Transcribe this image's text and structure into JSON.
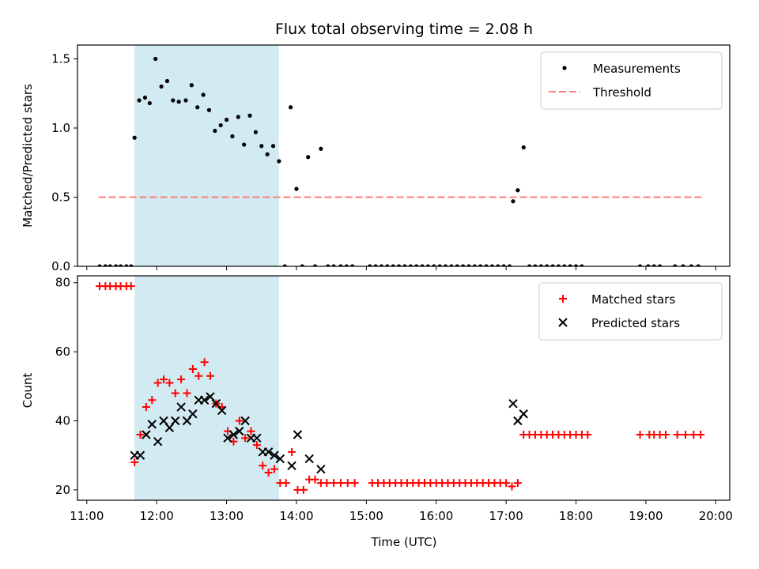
{
  "chart_data": {
    "title": "Flux total observing time = 2.08 h",
    "shaded_interval": {
      "start": "11:41",
      "end": "13:45",
      "color": "#add8e6"
    },
    "top": {
      "type": "scatter",
      "ylabel": "Matched/Predicted stars",
      "ylim": [
        0,
        1.6
      ],
      "yticks": [
        "0.0",
        "0.5",
        "1.0",
        "1.5"
      ],
      "ytick_values": [
        0,
        0.5,
        1.0,
        1.5
      ],
      "legend_position": "upper right",
      "legend": [
        "Measurements",
        "Threshold"
      ],
      "threshold": {
        "value": 0.5,
        "from": "11:10",
        "to": "19:48",
        "color": "#ff7f7f"
      },
      "series": [
        {
          "name": "Measurements",
          "marker": "dot",
          "color": "#000000",
          "points": [
            [
              "11:11",
              0
            ],
            [
              "11:16",
              0
            ],
            [
              "11:20",
              0
            ],
            [
              "11:25",
              0
            ],
            [
              "11:29",
              0
            ],
            [
              "11:34",
              0
            ],
            [
              "11:38",
              0
            ],
            [
              "11:41",
              0.93
            ],
            [
              "11:45",
              1.2
            ],
            [
              "11:50",
              1.22
            ],
            [
              "11:54",
              1.18
            ],
            [
              "11:59",
              1.5
            ],
            [
              "12:04",
              1.3
            ],
            [
              "12:09",
              1.34
            ],
            [
              "12:14",
              1.2
            ],
            [
              "12:19",
              1.19
            ],
            [
              "12:25",
              1.2
            ],
            [
              "12:30",
              1.31
            ],
            [
              "12:35",
              1.15
            ],
            [
              "12:40",
              1.24
            ],
            [
              "12:45",
              1.13
            ],
            [
              "12:50",
              0.98
            ],
            [
              "12:55",
              1.02
            ],
            [
              "13:00",
              1.06
            ],
            [
              "13:05",
              0.94
            ],
            [
              "13:10",
              1.08
            ],
            [
              "13:15",
              0.88
            ],
            [
              "13:20",
              1.09
            ],
            [
              "13:25",
              0.97
            ],
            [
              "13:30",
              0.87
            ],
            [
              "13:35",
              0.81
            ],
            [
              "13:40",
              0.87
            ],
            [
              "13:45",
              0.76
            ],
            [
              "13:50",
              0
            ],
            [
              "13:55",
              1.15
            ],
            [
              "14:00",
              0.56
            ],
            [
              "14:05",
              0
            ],
            [
              "14:10",
              0.79
            ],
            [
              "14:16",
              0
            ],
            [
              "14:21",
              0.85
            ],
            [
              "14:27",
              0
            ],
            [
              "14:32",
              0
            ],
            [
              "14:38",
              0
            ],
            [
              "14:43",
              0
            ],
            [
              "14:48",
              0
            ],
            [
              "15:03",
              0
            ],
            [
              "15:08",
              0
            ],
            [
              "15:13",
              0
            ],
            [
              "15:18",
              0
            ],
            [
              "15:23",
              0
            ],
            [
              "15:28",
              0
            ],
            [
              "15:33",
              0
            ],
            [
              "15:38",
              0
            ],
            [
              "15:43",
              0
            ],
            [
              "15:48",
              0
            ],
            [
              "15:53",
              0
            ],
            [
              "15:58",
              0
            ],
            [
              "16:03",
              0
            ],
            [
              "16:08",
              0
            ],
            [
              "16:13",
              0
            ],
            [
              "16:18",
              0
            ],
            [
              "16:23",
              0
            ],
            [
              "16:28",
              0
            ],
            [
              "16:33",
              0
            ],
            [
              "16:38",
              0
            ],
            [
              "16:43",
              0
            ],
            [
              "16:48",
              0
            ],
            [
              "16:53",
              0
            ],
            [
              "16:58",
              0
            ],
            [
              "17:03",
              0
            ],
            [
              "17:06",
              0.47
            ],
            [
              "17:10",
              0.55
            ],
            [
              "17:15",
              0.86
            ],
            [
              "17:20",
              0
            ],
            [
              "17:25",
              0
            ],
            [
              "17:30",
              0
            ],
            [
              "17:35",
              0
            ],
            [
              "17:40",
              0
            ],
            [
              "17:45",
              0
            ],
            [
              "17:50",
              0
            ],
            [
              "17:55",
              0
            ],
            [
              "18:00",
              0
            ],
            [
              "18:05",
              0
            ],
            [
              "18:55",
              0
            ],
            [
              "19:02",
              0
            ],
            [
              "19:07",
              0
            ],
            [
              "19:12",
              0
            ],
            [
              "19:25",
              0
            ],
            [
              "19:32",
              0
            ],
            [
              "19:39",
              0
            ],
            [
              "19:45",
              0
            ]
          ]
        }
      ]
    },
    "bottom": {
      "type": "scatter",
      "ylabel": "Count",
      "ylim": [
        17,
        82
      ],
      "yticks": [
        "20",
        "40",
        "60",
        "80"
      ],
      "ytick_values": [
        20,
        40,
        60,
        80
      ],
      "xlabel": "Time (UTC)",
      "xlim": [
        "10:52",
        "20:12"
      ],
      "xticks": [
        "11:00",
        "12:00",
        "13:00",
        "14:00",
        "15:00",
        "16:00",
        "17:00",
        "18:00",
        "19:00",
        "20:00"
      ],
      "legend_position": "upper right",
      "legend": [
        "Matched stars",
        "Predicted stars"
      ],
      "series": [
        {
          "name": "Matched stars",
          "marker": "plus",
          "color": "#ff0000",
          "points": [
            [
              "11:11",
              79
            ],
            [
              "11:16",
              79
            ],
            [
              "11:20",
              79
            ],
            [
              "11:25",
              79
            ],
            [
              "11:29",
              79
            ],
            [
              "11:34",
              79
            ],
            [
              "11:38",
              79
            ],
            [
              "11:41",
              28
            ],
            [
              "11:46",
              36
            ],
            [
              "11:51",
              44
            ],
            [
              "11:56",
              46
            ],
            [
              "12:01",
              51
            ],
            [
              "12:06",
              52
            ],
            [
              "12:11",
              51
            ],
            [
              "12:16",
              48
            ],
            [
              "12:21",
              52
            ],
            [
              "12:26",
              48
            ],
            [
              "12:31",
              55
            ],
            [
              "12:36",
              53
            ],
            [
              "12:41",
              57
            ],
            [
              "12:46",
              53
            ],
            [
              "12:51",
              45
            ],
            [
              "12:56",
              44
            ],
            [
              "13:01",
              37
            ],
            [
              "13:06",
              34
            ],
            [
              "13:11",
              40
            ],
            [
              "13:16",
              35
            ],
            [
              "13:21",
              37
            ],
            [
              "13:26",
              33
            ],
            [
              "13:31",
              27
            ],
            [
              "13:36",
              25
            ],
            [
              "13:41",
              26
            ],
            [
              "13:46",
              22
            ],
            [
              "13:51",
              22
            ],
            [
              "13:56",
              31
            ],
            [
              "14:01",
              20
            ],
            [
              "14:06",
              20
            ],
            [
              "14:11",
              23
            ],
            [
              "14:16",
              23
            ],
            [
              "14:21",
              22
            ],
            [
              "14:26",
              22
            ],
            [
              "14:32",
              22
            ],
            [
              "14:38",
              22
            ],
            [
              "14:44",
              22
            ],
            [
              "14:50",
              22
            ],
            [
              "15:05",
              22
            ],
            [
              "15:10",
              22
            ],
            [
              "15:15",
              22
            ],
            [
              "15:20",
              22
            ],
            [
              "15:25",
              22
            ],
            [
              "15:30",
              22
            ],
            [
              "15:35",
              22
            ],
            [
              "15:40",
              22
            ],
            [
              "15:45",
              22
            ],
            [
              "15:50",
              22
            ],
            [
              "15:55",
              22
            ],
            [
              "16:00",
              22
            ],
            [
              "16:05",
              22
            ],
            [
              "16:10",
              22
            ],
            [
              "16:15",
              22
            ],
            [
              "16:20",
              22
            ],
            [
              "16:25",
              22
            ],
            [
              "16:30",
              22
            ],
            [
              "16:35",
              22
            ],
            [
              "16:40",
              22
            ],
            [
              "16:45",
              22
            ],
            [
              "16:50",
              22
            ],
            [
              "16:55",
              22
            ],
            [
              "17:00",
              22
            ],
            [
              "17:05",
              21
            ],
            [
              "17:10",
              22
            ],
            [
              "17:15",
              36
            ],
            [
              "17:20",
              36
            ],
            [
              "17:25",
              36
            ],
            [
              "17:30",
              36
            ],
            [
              "17:35",
              36
            ],
            [
              "17:40",
              36
            ],
            [
              "17:45",
              36
            ],
            [
              "17:50",
              36
            ],
            [
              "17:55",
              36
            ],
            [
              "18:00",
              36
            ],
            [
              "18:05",
              36
            ],
            [
              "18:10",
              36
            ],
            [
              "18:55",
              36
            ],
            [
              "19:03",
              36
            ],
            [
              "19:07",
              36
            ],
            [
              "19:12",
              36
            ],
            [
              "19:17",
              36
            ],
            [
              "19:27",
              36
            ],
            [
              "19:34",
              36
            ],
            [
              "19:41",
              36
            ],
            [
              "19:47",
              36
            ]
          ]
        },
        {
          "name": "Predicted stars",
          "marker": "x",
          "color": "#000000",
          "points": [
            [
              "11:41",
              30
            ],
            [
              "11:46",
              30
            ],
            [
              "11:51",
              36
            ],
            [
              "11:56",
              39
            ],
            [
              "12:01",
              34
            ],
            [
              "12:06",
              40
            ],
            [
              "12:11",
              38
            ],
            [
              "12:16",
              40
            ],
            [
              "12:21",
              44
            ],
            [
              "12:26",
              40
            ],
            [
              "12:31",
              42
            ],
            [
              "12:36",
              46
            ],
            [
              "12:41",
              46
            ],
            [
              "12:46",
              47
            ],
            [
              "12:51",
              45
            ],
            [
              "12:56",
              43
            ],
            [
              "13:01",
              35
            ],
            [
              "13:06",
              36
            ],
            [
              "13:11",
              37
            ],
            [
              "13:16",
              40
            ],
            [
              "13:21",
              35
            ],
            [
              "13:26",
              35
            ],
            [
              "13:31",
              31
            ],
            [
              "13:36",
              31
            ],
            [
              "13:41",
              30
            ],
            [
              "13:46",
              29
            ],
            [
              "13:56",
              27
            ],
            [
              "14:01",
              36
            ],
            [
              "14:11",
              29
            ],
            [
              "14:21",
              26
            ],
            [
              "17:06",
              45
            ],
            [
              "17:10",
              40
            ],
            [
              "17:15",
              42
            ]
          ]
        }
      ]
    }
  }
}
